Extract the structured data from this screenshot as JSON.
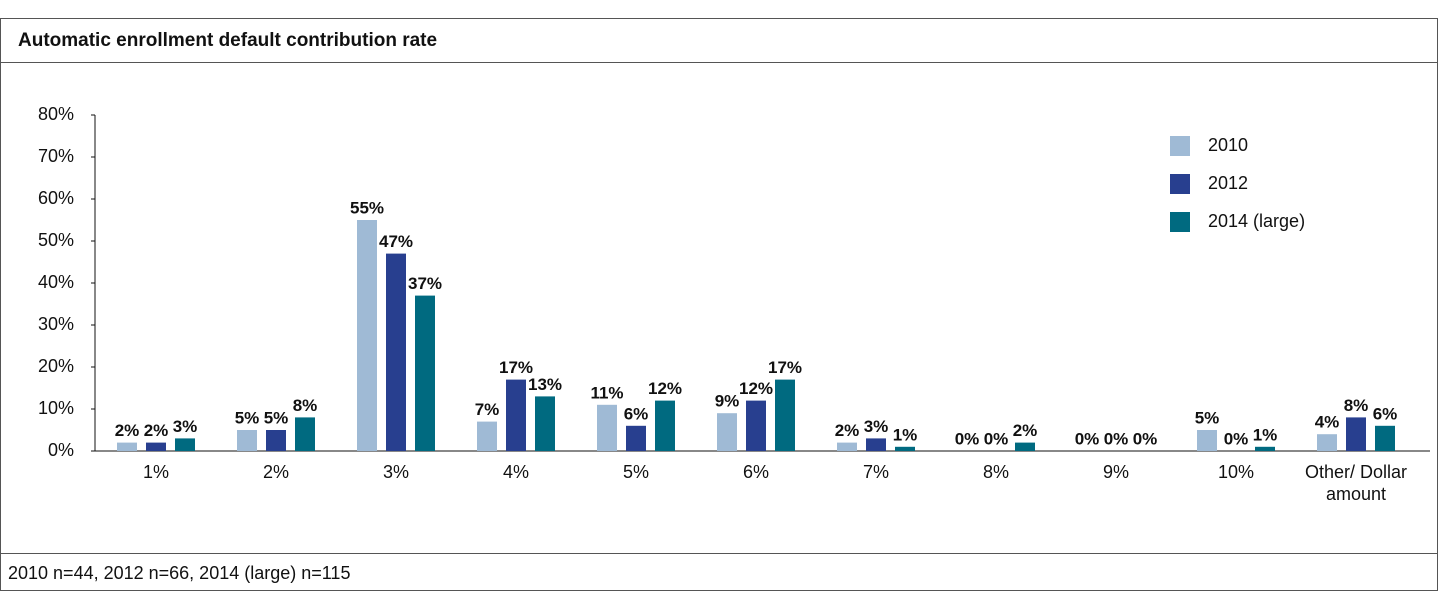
{
  "chart_data": {
    "type": "bar",
    "title": "Automatic enrollment default contribution rate",
    "note": "2010 n=44, 2012 n=66, 2014 (large) n=115",
    "categories": [
      "1%",
      "2%",
      "3%",
      "4%",
      "5%",
      "6%",
      "7%",
      "8%",
      "9%",
      "10%",
      "Other/ Dollar amount"
    ],
    "series": [
      {
        "name": "2010",
        "color": "#9fbad5",
        "values": [
          2,
          5,
          55,
          7,
          11,
          9,
          2,
          0,
          0,
          5,
          4
        ],
        "value_labels": [
          "2%",
          "5%",
          "55%",
          "7%",
          "11%",
          "9%",
          "2%",
          "0%",
          "0%",
          "5%",
          "4%"
        ]
      },
      {
        "name": "2012",
        "color": "#283f8f",
        "values": [
          2,
          5,
          47,
          17,
          6,
          12,
          3,
          0,
          0,
          0,
          8
        ],
        "value_labels": [
          "2%",
          "5%",
          "47%",
          "17%",
          "6%",
          "12%",
          "3%",
          "0%",
          "0%",
          "0%",
          "8%"
        ]
      },
      {
        "name": "2014 (large)",
        "color": "#006a80",
        "values": [
          3,
          8,
          37,
          13,
          12,
          17,
          1,
          2,
          0,
          1,
          6
        ],
        "value_labels": [
          "3%",
          "8%",
          "37%",
          "13%",
          "12%",
          "17%",
          "1%",
          "2%",
          "0%",
          "1%",
          "6%"
        ]
      }
    ],
    "ylim": [
      0,
      80
    ],
    "yticks": [
      {
        "value": 0,
        "label": "0%"
      },
      {
        "value": 10,
        "label": "10%"
      },
      {
        "value": 20,
        "label": "20%"
      },
      {
        "value": 30,
        "label": "30%"
      },
      {
        "value": 40,
        "label": "40%"
      },
      {
        "value": 50,
        "label": "50%"
      },
      {
        "value": 60,
        "label": "60%"
      },
      {
        "value": 70,
        "label": "70%"
      },
      {
        "value": 80,
        "label": "80%"
      }
    ],
    "grid": false,
    "legend": "upper right"
  }
}
